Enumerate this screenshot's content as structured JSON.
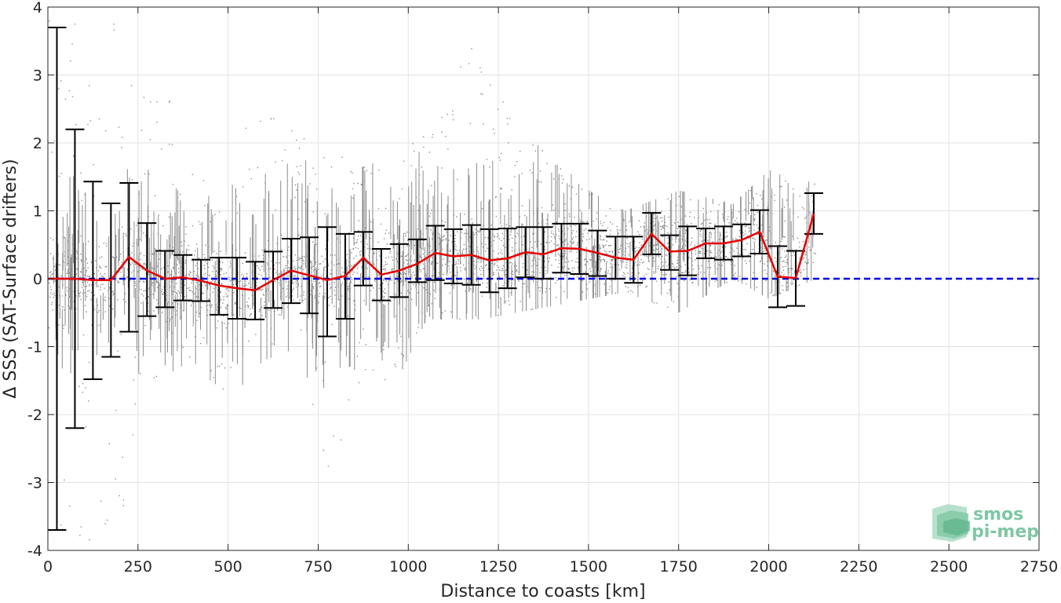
{
  "chart_data": {
    "type": "line",
    "title": "",
    "xlabel": "Distance to coasts [km]",
    "ylabel": "Δ SSS (SAT-Surface drifters)",
    "xlim": [
      0,
      2750
    ],
    "ylim": [
      -4,
      4
    ],
    "xticks": [
      0,
      250,
      500,
      750,
      1000,
      1250,
      1500,
      1750,
      2000,
      2250,
      2500,
      2750
    ],
    "yticks": [
      -4,
      -3,
      -2,
      -1,
      0,
      1,
      2,
      3,
      4
    ],
    "grid": true,
    "reference_line": {
      "y": 0,
      "style": "dashed",
      "color": "#0000e6"
    },
    "series": [
      {
        "type": "scatter",
        "color": "#808080",
        "envelope": [
          {
            "x": 0,
            "lo": -3.9,
            "hi": 4.0
          },
          {
            "x": 100,
            "lo": -3.9,
            "hi": 4.0
          },
          {
            "x": 200,
            "lo": -3.6,
            "hi": 4.0
          },
          {
            "x": 300,
            "lo": -1.5,
            "hi": 3.0
          },
          {
            "x": 400,
            "lo": -1.2,
            "hi": 2.0
          },
          {
            "x": 500,
            "lo": -1.8,
            "hi": 2.2
          },
          {
            "x": 600,
            "lo": -1.2,
            "hi": 2.5
          },
          {
            "x": 700,
            "lo": -1.0,
            "hi": 2.2
          },
          {
            "x": 780,
            "lo": -3.3,
            "hi": 2.0
          },
          {
            "x": 850,
            "lo": -1.5,
            "hi": 1.6
          },
          {
            "x": 950,
            "lo": -1.7,
            "hi": 1.8
          },
          {
            "x": 1050,
            "lo": -0.6,
            "hi": 2.4
          },
          {
            "x": 1200,
            "lo": -0.6,
            "hi": 4.0
          },
          {
            "x": 1300,
            "lo": -0.5,
            "hi": 2.2
          },
          {
            "x": 1400,
            "lo": -0.4,
            "hi": 1.8
          },
          {
            "x": 1500,
            "lo": -0.3,
            "hi": 1.3
          },
          {
            "x": 1600,
            "lo": -0.2,
            "hi": 1.0
          },
          {
            "x": 1750,
            "lo": -0.5,
            "hi": 1.3
          },
          {
            "x": 1900,
            "lo": 0.0,
            "hi": 1.1
          },
          {
            "x": 2000,
            "lo": -0.3,
            "hi": 1.6
          },
          {
            "x": 2130,
            "lo": 0.0,
            "hi": 1.4
          }
        ]
      },
      {
        "type": "errorbar",
        "color": "#e60000",
        "bar_color": "#000000",
        "x": [
          25,
          75,
          125,
          175,
          225,
          275,
          325,
          375,
          425,
          475,
          525,
          575,
          625,
          675,
          725,
          775,
          825,
          875,
          925,
          975,
          1025,
          1075,
          1125,
          1175,
          1225,
          1275,
          1325,
          1375,
          1425,
          1475,
          1525,
          1575,
          1625,
          1675,
          1725,
          1775,
          1825,
          1875,
          1925,
          1975,
          2025,
          2075,
          2125
        ],
        "mean": [
          0.0,
          0.0,
          -0.02,
          -0.02,
          0.32,
          0.12,
          0.0,
          0.02,
          -0.03,
          -0.1,
          -0.14,
          -0.17,
          -0.02,
          0.12,
          0.05,
          -0.02,
          0.04,
          0.31,
          0.06,
          0.12,
          0.22,
          0.38,
          0.33,
          0.35,
          0.27,
          0.3,
          0.39,
          0.36,
          0.45,
          0.44,
          0.38,
          0.31,
          0.28,
          0.66,
          0.4,
          0.41,
          0.52,
          0.52,
          0.57,
          0.69,
          0.03,
          0.01,
          0.96
        ],
        "upper": [
          3.7,
          2.2,
          1.43,
          1.11,
          1.41,
          0.82,
          0.41,
          0.35,
          0.28,
          0.31,
          0.31,
          0.25,
          0.4,
          0.59,
          0.61,
          0.76,
          0.66,
          0.69,
          0.44,
          0.51,
          0.58,
          0.78,
          0.73,
          0.79,
          0.73,
          0.74,
          0.76,
          0.76,
          0.81,
          0.81,
          0.71,
          0.62,
          0.62,
          0.97,
          0.64,
          0.77,
          0.74,
          0.77,
          0.8,
          1.01,
          0.48,
          0.41,
          1.26
        ],
        "lower": [
          -3.7,
          -2.2,
          -1.48,
          -1.15,
          -0.78,
          -0.55,
          -0.42,
          -0.32,
          -0.33,
          -0.53,
          -0.59,
          -0.6,
          -0.43,
          -0.36,
          -0.51,
          -0.85,
          -0.59,
          -0.1,
          -0.32,
          -0.27,
          -0.05,
          -0.02,
          -0.07,
          -0.09,
          -0.2,
          -0.14,
          0.02,
          0.0,
          0.09,
          0.07,
          0.04,
          0.0,
          -0.06,
          0.36,
          0.13,
          0.05,
          0.3,
          0.28,
          0.33,
          0.37,
          -0.42,
          -0.4,
          0.66
        ]
      }
    ]
  },
  "logo": {
    "line1": "smos",
    "line2": "pi-mep",
    "color": "#7fc7a3"
  }
}
